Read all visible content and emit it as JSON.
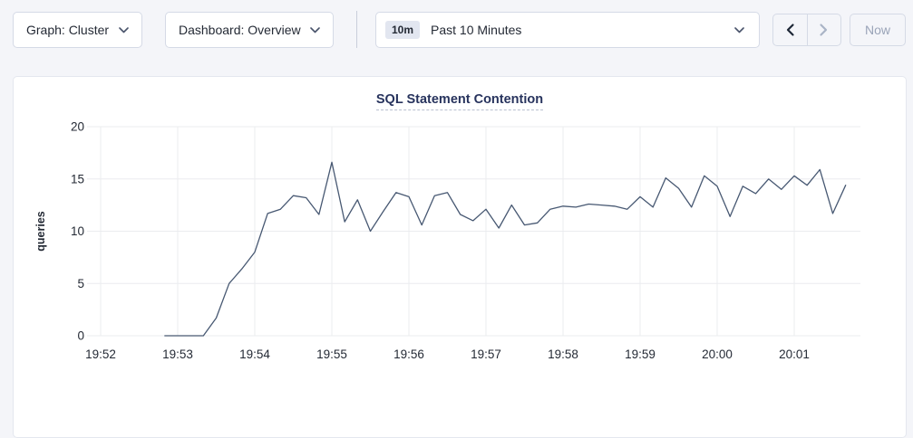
{
  "toolbar": {
    "graph_dropdown_label": "Graph: Cluster",
    "dashboard_dropdown_label": "Dashboard: Overview",
    "time_window_badge": "10m",
    "time_range_label": "Past 10 Minutes",
    "now_button_label": "Now",
    "prev_enabled": true,
    "next_enabled": false,
    "now_enabled": false,
    "icons": {
      "graph_caret": "chevron-down-icon",
      "dashboard_caret": "chevron-down-icon",
      "time_caret": "chevron-down-icon",
      "prev": "chevron-left-icon",
      "next": "chevron-right-icon"
    }
  },
  "colors": {
    "page_bg": "#f4f5f9",
    "panel_bg": "#ffffff",
    "panel_border": "#e4e7ef",
    "button_border": "#d5dae6",
    "text": "#242a35",
    "disabled": "#aab4c6",
    "enabled_arrow": "#1d2736",
    "title": "#27335d",
    "grid": "#ebecef",
    "line": "#475872",
    "axis_text": "#242a35",
    "badge_bg": "#e2e6f0"
  },
  "chart_data": {
    "type": "line",
    "title": "SQL Statement Contention",
    "xlabel": "",
    "ylabel": "queries",
    "ylim": [
      0,
      20
    ],
    "yticks": [
      0,
      5,
      10,
      15,
      20
    ],
    "xticks": [
      "19:52",
      "19:53",
      "19:54",
      "19:55",
      "19:56",
      "19:57",
      "19:58",
      "19:59",
      "20:00",
      "20:01"
    ],
    "grid": true,
    "legend_position": "none",
    "series": [
      {
        "name": "queries",
        "color": "#475872",
        "points": [
          [
            "19:52:50",
            0
          ],
          [
            "19:53:00",
            0
          ],
          [
            "19:53:10",
            0
          ],
          [
            "19:53:20",
            0
          ],
          [
            "19:53:30",
            1.7
          ],
          [
            "19:53:40",
            5.0
          ],
          [
            "19:53:50",
            6.4
          ],
          [
            "19:54:00",
            8.0
          ],
          [
            "19:54:10",
            11.7
          ],
          [
            "19:54:20",
            12.1
          ],
          [
            "19:54:30",
            13.4
          ],
          [
            "19:54:40",
            13.2
          ],
          [
            "19:54:50",
            11.6
          ],
          [
            "19:55:00",
            16.6
          ],
          [
            "19:55:10",
            10.9
          ],
          [
            "19:55:20",
            13.0
          ],
          [
            "19:55:30",
            10.0
          ],
          [
            "19:55:40",
            11.9
          ],
          [
            "19:55:50",
            13.7
          ],
          [
            "19:56:00",
            13.3
          ],
          [
            "19:56:10",
            10.6
          ],
          [
            "19:56:20",
            13.4
          ],
          [
            "19:56:30",
            13.7
          ],
          [
            "19:56:40",
            11.6
          ],
          [
            "19:56:50",
            11.0
          ],
          [
            "19:57:00",
            12.1
          ],
          [
            "19:57:10",
            10.3
          ],
          [
            "19:57:20",
            12.5
          ],
          [
            "19:57:30",
            10.6
          ],
          [
            "19:57:40",
            10.8
          ],
          [
            "19:57:50",
            12.1
          ],
          [
            "19:58:00",
            12.4
          ],
          [
            "19:58:10",
            12.3
          ],
          [
            "19:58:20",
            12.6
          ],
          [
            "19:58:30",
            12.5
          ],
          [
            "19:58:40",
            12.4
          ],
          [
            "19:58:50",
            12.1
          ],
          [
            "19:59:00",
            13.3
          ],
          [
            "19:59:10",
            12.3
          ],
          [
            "19:59:20",
            15.1
          ],
          [
            "19:59:30",
            14.1
          ],
          [
            "19:59:40",
            12.3
          ],
          [
            "19:59:50",
            15.3
          ],
          [
            "20:00:00",
            14.3
          ],
          [
            "20:00:10",
            11.4
          ],
          [
            "20:00:20",
            14.3
          ],
          [
            "20:00:30",
            13.6
          ],
          [
            "20:00:40",
            15.0
          ],
          [
            "20:00:50",
            14.0
          ],
          [
            "20:01:00",
            15.3
          ],
          [
            "20:01:10",
            14.4
          ],
          [
            "20:01:20",
            15.9
          ],
          [
            "20:01:30",
            11.7
          ],
          [
            "20:01:40",
            14.4
          ]
        ]
      }
    ]
  }
}
